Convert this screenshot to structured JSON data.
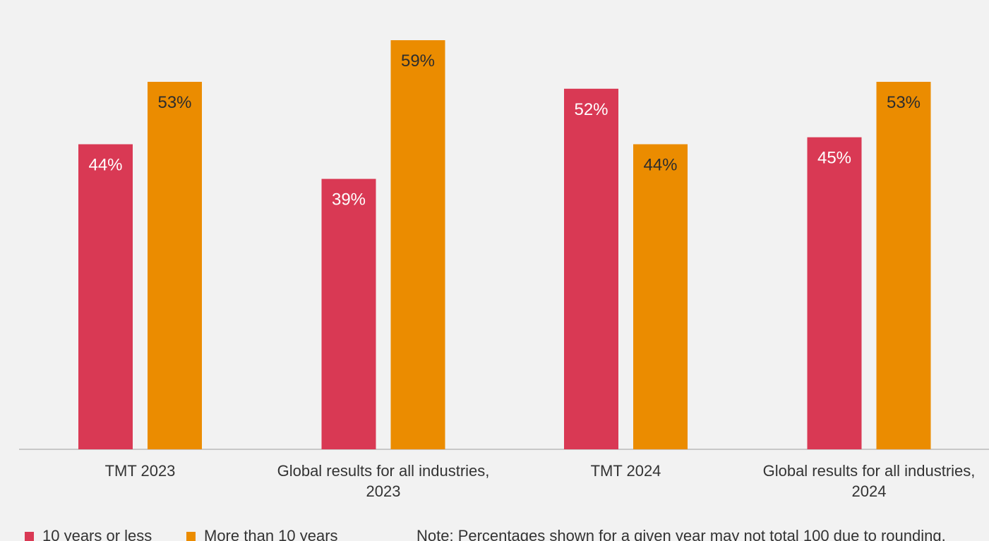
{
  "chart_data": {
    "type": "bar",
    "categories": [
      [
        "TMT 2023"
      ],
      [
        "Global results for all industries,",
        "2023"
      ],
      [
        "TMT 2024"
      ],
      [
        "Global results for all industries,",
        "2024"
      ]
    ],
    "series": [
      {
        "name": "10 years or less",
        "color": "#d93954",
        "values": [
          44,
          39,
          52,
          45
        ],
        "labels": [
          "44%",
          "39%",
          "52%",
          "45%"
        ],
        "label_color": "#ffffff"
      },
      {
        "name": "More than 10 years",
        "color": "#eb8c00",
        "values": [
          53,
          59,
          44,
          53
        ],
        "labels": [
          "53%",
          "59%",
          "44%",
          "53%"
        ],
        "label_color": "#2d2d2d"
      }
    ],
    "ylim": [
      0,
      59
    ],
    "grid": false,
    "legend_position": "bottom-left",
    "note": "Note: Percentages shown for a given year may not total 100 due to rounding."
  }
}
